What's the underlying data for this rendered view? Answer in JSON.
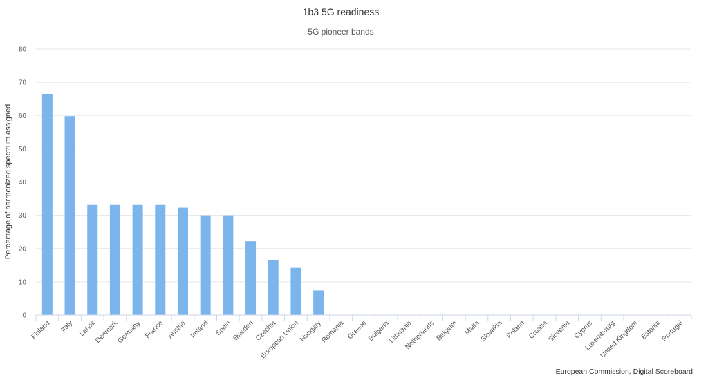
{
  "chart_data": {
    "type": "bar",
    "title": "1b3 5G readiness",
    "subtitle": "5G pioneer bands",
    "xlabel": "",
    "ylabel": "Percentage of harmonized spectrum assigned",
    "ylim": [
      0,
      80
    ],
    "yticks": [
      0,
      10,
      20,
      30,
      40,
      50,
      60,
      70,
      80
    ],
    "grid": true,
    "color": "#7cb5ec",
    "categories": [
      "Finland",
      "Italy",
      "Latvia",
      "Denmark",
      "Germany",
      "France",
      "Austria",
      "Ireland",
      "Spain",
      "Sweden",
      "Czechia",
      "European Union",
      "Hungary",
      "Romania",
      "Greece",
      "Bulgaria",
      "Lithuania",
      "Netherlands",
      "Belgium",
      "Malta",
      "Slovakia",
      "Poland",
      "Croatia",
      "Slovenia",
      "Cyprus",
      "Luxembourg",
      "United Kingdom",
      "Estonia",
      "Portugal"
    ],
    "values": [
      66.5,
      59.8,
      33.3,
      33.3,
      33.3,
      33.3,
      32.3,
      30.0,
      30.0,
      22.2,
      16.6,
      14.2,
      7.4,
      0,
      0,
      0,
      0,
      0,
      0,
      0,
      0,
      0,
      0,
      0,
      0,
      0,
      0,
      0,
      0
    ]
  },
  "credit": "European Commission, Digital Scoreboard"
}
